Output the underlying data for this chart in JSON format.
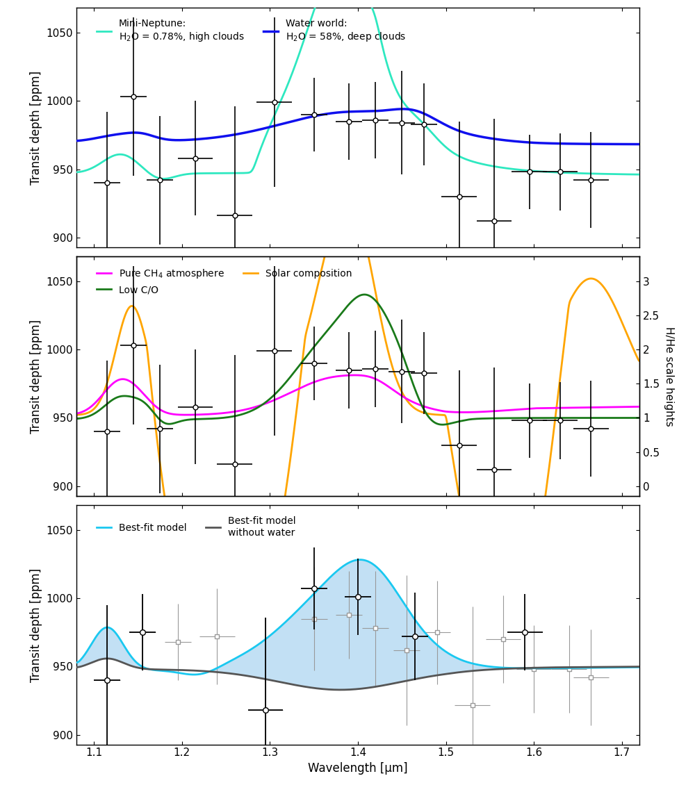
{
  "xlim": [
    1.08,
    1.72
  ],
  "ylim": [
    893,
    1068
  ],
  "xlabel": "Wavelength [μm]",
  "ylabel": "Transit depth [ppm]",
  "yticks": [
    900,
    950,
    1000,
    1050
  ],
  "xticks": [
    1.1,
    1.2,
    1.3,
    1.4,
    1.5,
    1.6,
    1.7
  ],
  "mini_neptune_color": "#2EE8C0",
  "water_world_color": "#1010EE",
  "ch4_color": "#FF00FF",
  "lowco_color": "#1A7A1A",
  "solar_color": "#FFA500",
  "bestfit_color": "#1AC8F0",
  "nowater_color": "#555555",
  "fill_color": "#AED6F1",
  "p12_x": [
    1.115,
    1.145,
    1.175,
    1.215,
    1.26,
    1.305,
    1.35,
    1.39,
    1.42,
    1.45,
    1.475,
    1.515,
    1.555,
    1.595,
    1.63,
    1.665
  ],
  "p12_y": [
    940,
    1003,
    942,
    958,
    916,
    999,
    990,
    985,
    986,
    984,
    983,
    930,
    912,
    948,
    948,
    942
  ],
  "p12_elo": [
    52,
    58,
    47,
    42,
    80,
    62,
    27,
    28,
    28,
    38,
    30,
    55,
    75,
    27,
    28,
    35
  ],
  "p12_ehi": [
    52,
    58,
    47,
    42,
    80,
    62,
    27,
    28,
    28,
    38,
    30,
    55,
    75,
    27,
    28,
    35
  ],
  "p12_exerr": [
    0.015,
    0.015,
    0.015,
    0.02,
    0.02,
    0.02,
    0.015,
    0.015,
    0.015,
    0.015,
    0.015,
    0.02,
    0.02,
    0.02,
    0.02,
    0.02
  ],
  "p3_gray_x": [
    1.115,
    1.155,
    1.195,
    1.24,
    1.295,
    1.35,
    1.39,
    1.42,
    1.455,
    1.49,
    1.53,
    1.565,
    1.6,
    1.64,
    1.665
  ],
  "p3_gray_y": [
    940,
    975,
    968,
    972,
    918,
    985,
    988,
    978,
    962,
    975,
    922,
    970,
    948,
    948,
    942
  ],
  "p3_gray_elo": [
    55,
    28,
    28,
    35,
    68,
    38,
    32,
    42,
    55,
    38,
    72,
    32,
    32,
    32,
    35
  ],
  "p3_gray_ehi": [
    55,
    28,
    28,
    35,
    68,
    38,
    32,
    42,
    55,
    38,
    72,
    32,
    32,
    32,
    35
  ],
  "p3_gray_exerr": [
    0.015,
    0.015,
    0.015,
    0.02,
    0.02,
    0.015,
    0.015,
    0.015,
    0.015,
    0.015,
    0.02,
    0.02,
    0.02,
    0.02,
    0.02
  ],
  "p3_blk_x": [
    1.115,
    1.155,
    1.295,
    1.35,
    1.4,
    1.465,
    1.59
  ],
  "p3_blk_y": [
    940,
    975,
    918,
    1007,
    1001,
    972,
    975
  ],
  "p3_blk_elo": [
    55,
    28,
    68,
    30,
    28,
    32,
    28
  ],
  "p3_blk_ehi": [
    55,
    28,
    68,
    30,
    28,
    32,
    28
  ],
  "p3_blk_exerr": [
    0.015,
    0.015,
    0.02,
    0.015,
    0.015,
    0.015,
    0.02
  ],
  "sh_tick_ppm": [
    900,
    925,
    950,
    975,
    1000,
    1025,
    1050
  ],
  "sh_tick_labels": [
    "0",
    "0.5",
    "1",
    "1.5",
    "2",
    "2.5",
    "3"
  ]
}
